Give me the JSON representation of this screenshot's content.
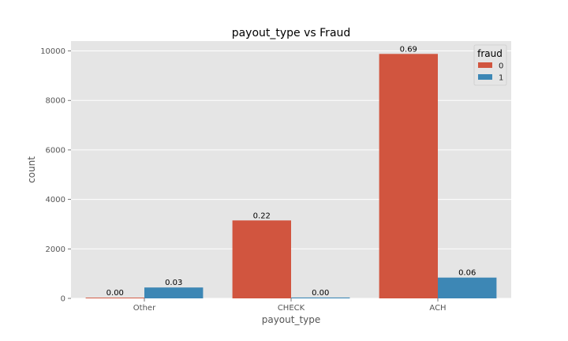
{
  "chart_data": {
    "type": "bar",
    "title": "payout_type vs Fraud",
    "xlabel": "payout_type",
    "ylabel": "count",
    "categories": [
      "Other",
      "CHECK",
      "ACH"
    ],
    "ylim": [
      0,
      10400
    ],
    "yticks": [
      0,
      2000,
      4000,
      6000,
      8000,
      10000
    ],
    "grid": true,
    "legend": {
      "title": "fraud",
      "placement": "top-right"
    },
    "series": [
      {
        "name": "0",
        "color": "#d1553f",
        "values": [
          30,
          3150,
          9880
        ],
        "labels": [
          "0.00",
          "0.22",
          "0.69"
        ]
      },
      {
        "name": "1",
        "color": "#3d87b5",
        "values": [
          440,
          35,
          840
        ],
        "labels": [
          "0.03",
          "0.00",
          "0.06"
        ]
      }
    ]
  }
}
